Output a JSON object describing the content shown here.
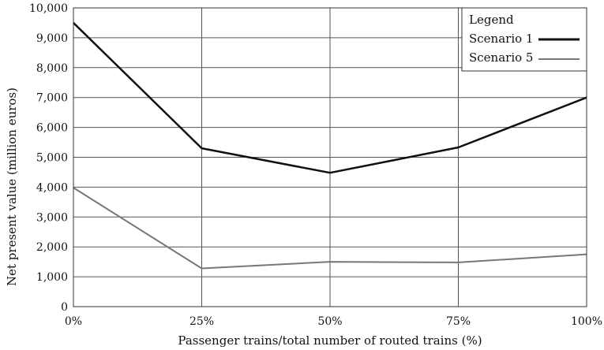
{
  "chart_data": {
    "type": "line",
    "title": "",
    "xlabel": "Passenger trains/total number of routed trains (%)",
    "ylabel": "Net present value (million euros)",
    "x": [
      0,
      25,
      50,
      75,
      100
    ],
    "x_tick_labels": [
      "0%",
      "25%",
      "50%",
      "75%",
      "100%"
    ],
    "ylim": [
      0,
      10000
    ],
    "y_ticks": [
      0,
      1000,
      2000,
      3000,
      4000,
      5000,
      6000,
      7000,
      8000,
      9000,
      10000
    ],
    "y_tick_labels": [
      "0",
      "1,000",
      "2,000",
      "3,000",
      "4,000",
      "5,000",
      "6,000",
      "7,000",
      "8,000",
      "9,000",
      "10,000"
    ],
    "grid": true,
    "legend": {
      "title": "Legend",
      "placement": "top-right"
    },
    "series": [
      {
        "name": "Scenario 1",
        "color": "#111111",
        "values": [
          9500,
          5300,
          4480,
          5330,
          7000
        ]
      },
      {
        "name": "Scenario 5",
        "color": "#777777",
        "values": [
          3980,
          1280,
          1500,
          1480,
          1750
        ]
      }
    ]
  }
}
